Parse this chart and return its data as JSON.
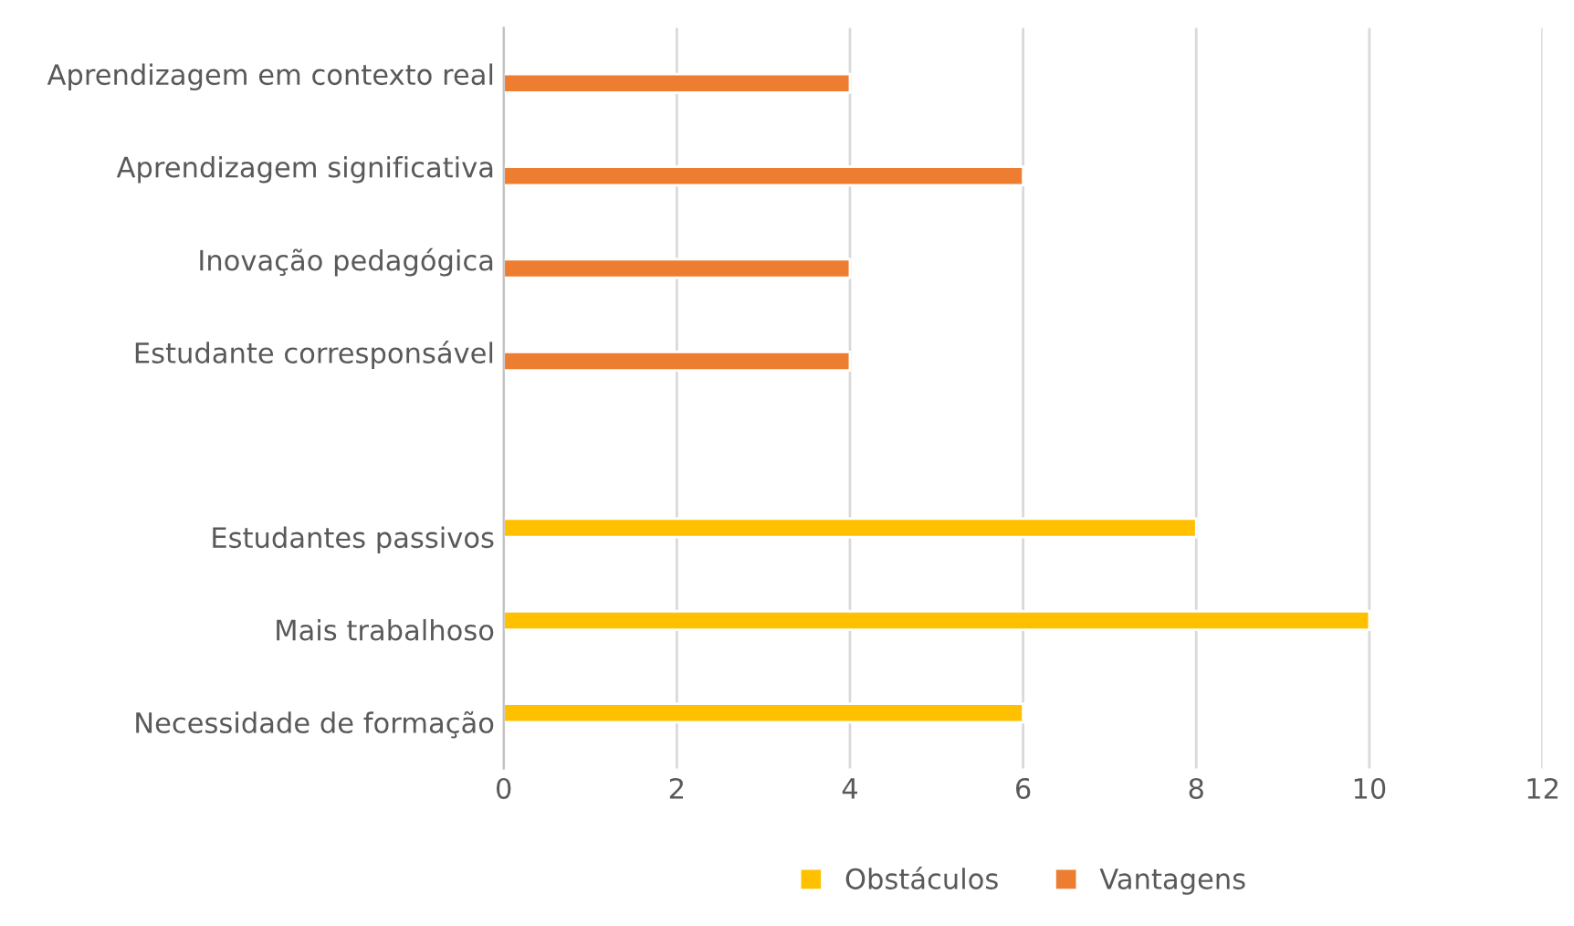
{
  "chart_data": {
    "type": "bar",
    "orientation": "horizontal",
    "categories": [
      "Aprendizagem em contexto real",
      "Aprendizagem significativa",
      "Inovação pedagógica",
      "Estudante corresponsável",
      null,
      "Estudantes passivos",
      "Mais trabalhoso",
      "Necessidade de formação"
    ],
    "series": [
      {
        "name": "Obstáculos",
        "color": "#ffc000",
        "values": [
          null,
          null,
          null,
          null,
          null,
          8,
          10,
          6
        ]
      },
      {
        "name": "Vantagens",
        "color": "#ed7d31",
        "values": [
          4,
          6,
          4,
          4,
          null,
          null,
          null,
          null
        ]
      }
    ],
    "xlim": [
      0,
      12
    ],
    "xticks": [
      0,
      2,
      4,
      6,
      8,
      10,
      12
    ],
    "grid": "x",
    "legend": "bottom"
  }
}
